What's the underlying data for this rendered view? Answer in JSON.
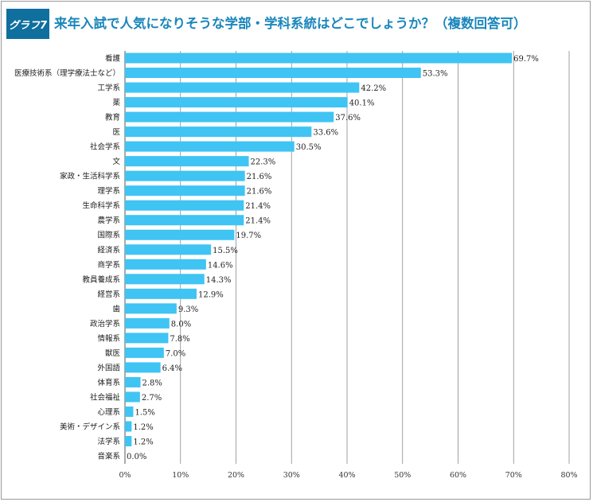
{
  "header": {
    "badge": "グラフ7",
    "title": "来年入試で人気になりそうな学部・学科系統はどこでしょうか？（複数回答可）"
  },
  "colors": {
    "bar": "#3fc4f3",
    "accent": "#0f6f9e",
    "title": "#1a86bb"
  },
  "chart_data": {
    "type": "bar",
    "orientation": "horizontal",
    "title": "来年入試で人気になりそうな学部・学科系統はどこでしょうか？（複数回答可）",
    "categories": [
      "看護",
      "医療技術系（理学療法士など）",
      "工学系",
      "薬",
      "教育",
      "医",
      "社会学系",
      "文",
      "家政・生活科学系",
      "理学系",
      "生命科学系",
      "農学系",
      "国際系",
      "経済系",
      "商学系",
      "教員養成系",
      "経営系",
      "歯",
      "政治学系",
      "情報系",
      "獣医",
      "外国語",
      "体育系",
      "社会福祉",
      "心理系",
      "美術・デザイン系",
      "法学系",
      "音楽系"
    ],
    "values": [
      69.7,
      53.3,
      42.2,
      40.1,
      37.6,
      33.6,
      30.5,
      22.3,
      21.6,
      21.6,
      21.4,
      21.4,
      19.7,
      15.5,
      14.6,
      14.3,
      12.9,
      9.3,
      8.0,
      7.8,
      7.0,
      6.4,
      2.8,
      2.7,
      1.5,
      1.2,
      1.2,
      0.0
    ],
    "value_labels": [
      "69.7%",
      "53.3%",
      "42.2%",
      "40.1%",
      "37.6%",
      "33.6%",
      "30.5%",
      "22.3%",
      "21.6%",
      "21.6%",
      "21.4%",
      "21.4%",
      "19.7%",
      "15.5%",
      "14.6%",
      "14.3%",
      "12.9%",
      "9.3%",
      "8.0%",
      "7.8%",
      "7.0%",
      "6.4%",
      "2.8%",
      "2.7%",
      "1.5%",
      "1.2%",
      "1.2%",
      "0.0%"
    ],
    "xticks": [
      "0%",
      "10%",
      "20%",
      "30%",
      "40%",
      "50%",
      "60%",
      "70%",
      "80%"
    ],
    "xlim": [
      0,
      80
    ],
    "grid": true,
    "xlabel": "",
    "ylabel": ""
  }
}
